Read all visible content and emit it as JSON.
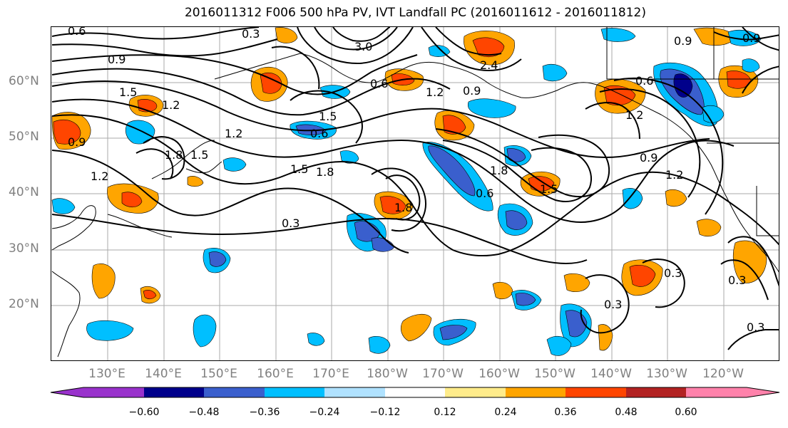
{
  "title": "2016011312 F006 500 hPa PV, IVT Landfall PC (2016011612 - 2016011812)",
  "lat_labels": [
    "60°N",
    "50°N",
    "40°N",
    "30°N",
    "20°N"
  ],
  "lon_labels": [
    "130°E",
    "140°E",
    "150°E",
    "160°E",
    "170°E",
    "180°W",
    "170°W",
    "160°W",
    "150°W",
    "140°W",
    "130°W",
    "120°W"
  ],
  "contour_labels": [
    "0.6",
    "0.3",
    "0.9",
    "3.0",
    "2.4",
    "0.6",
    "1.2",
    "0.9",
    "1.5",
    "1.2",
    "0.9",
    "1.8",
    "1.5",
    "1.2",
    "0.6",
    "1.5",
    "1.8",
    "1.2",
    "0.9",
    "0.6",
    "1.2",
    "1.5",
    "1.8",
    "0.3",
    "1.8",
    "0.6",
    "1.5",
    "0.9",
    "1.2",
    "0.3",
    "0.3",
    "0.3",
    "0.3",
    "0.9"
  ],
  "colorbar": {
    "colors": [
      "#9932cc",
      "#00008b",
      "#3a5fcd",
      "#00bfff",
      "#b0e2ff",
      "#ffffff",
      "#ffec8b",
      "#ffa500",
      "#ff4500",
      "#b22222",
      "#ff82ab"
    ],
    "tick_labels": [
      "−0.60",
      "−0.48",
      "−0.36",
      "−0.24",
      "−0.12",
      "0.12",
      "0.24",
      "0.36",
      "0.48",
      "0.60"
    ]
  },
  "shading_colors": {
    "pos_light": "#ffec8b",
    "pos_mid": "#ffa500",
    "pos_strong": "#ff4500",
    "neg_light": "#b0e2ff",
    "neg_mid": "#00bfff",
    "neg_strong": "#3a5fcd",
    "neg_deep": "#00008b"
  }
}
